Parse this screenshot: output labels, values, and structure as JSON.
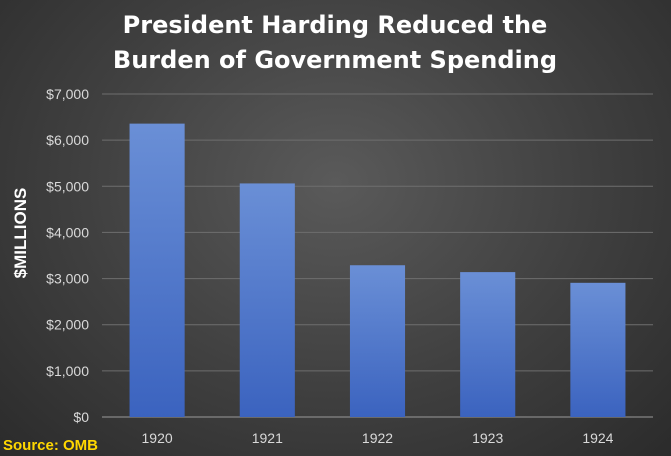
{
  "chart_data": {
    "type": "bar",
    "title_lines": [
      "President Harding Reduced the",
      "Burden of Government Spending"
    ],
    "ylabel": "$MILLIONS",
    "xlabel": "",
    "categories": [
      "1920",
      "1921",
      "1922",
      "1923",
      "1924"
    ],
    "values": [
      6358,
      5062,
      3289,
      3140,
      2908
    ],
    "ylim": [
      0,
      7000
    ],
    "yticks": [
      0,
      1000,
      2000,
      3000,
      4000,
      5000,
      6000,
      7000
    ],
    "ytick_labels": [
      "$0",
      "$1,000",
      "$2,000",
      "$3,000",
      "$4,000",
      "$5,000",
      "$6,000",
      "$7,000"
    ],
    "grid": true,
    "legend": "none",
    "bar_color_top": "#6a8fd6",
    "bar_color_bottom": "#3b63bf"
  },
  "source": "Source: OMB"
}
